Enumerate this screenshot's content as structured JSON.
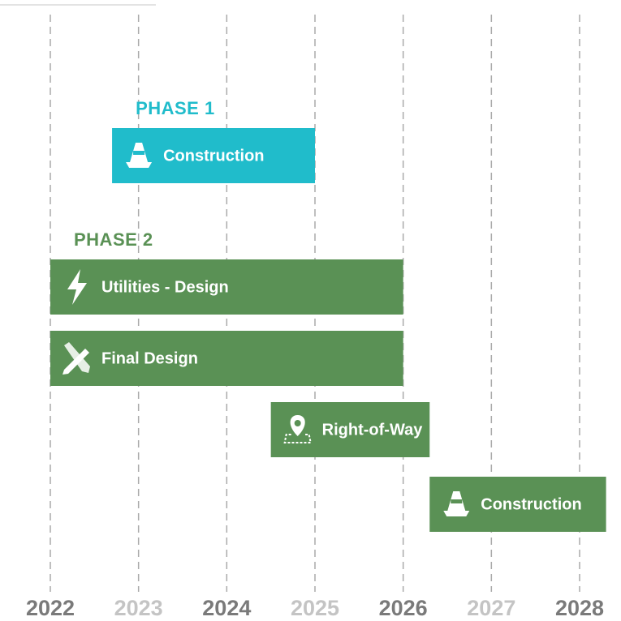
{
  "chart_data": {
    "type": "gantt",
    "xlim": [
      2022,
      2028
    ],
    "xticks": [
      2022,
      2023,
      2024,
      2025,
      2026,
      2027,
      2028
    ],
    "grid": true,
    "phases": [
      {
        "name": "PHASE 1",
        "color": "#20bccb",
        "tasks": [
          {
            "label": "Construction",
            "start": 2022.7,
            "end": 2025
          }
        ]
      },
      {
        "name": "PHASE 2",
        "color": "#5a9155",
        "tasks": [
          {
            "label": "Utilities - Design",
            "start": 2022,
            "end": 2026
          },
          {
            "label": "Final Design",
            "start": 2022,
            "end": 2026
          },
          {
            "label": "Right-of-Way",
            "start": 2024.5,
            "end": 2026.3
          },
          {
            "label": "Construction",
            "start": 2026.3,
            "end": 2028.3
          }
        ]
      }
    ]
  }
}
